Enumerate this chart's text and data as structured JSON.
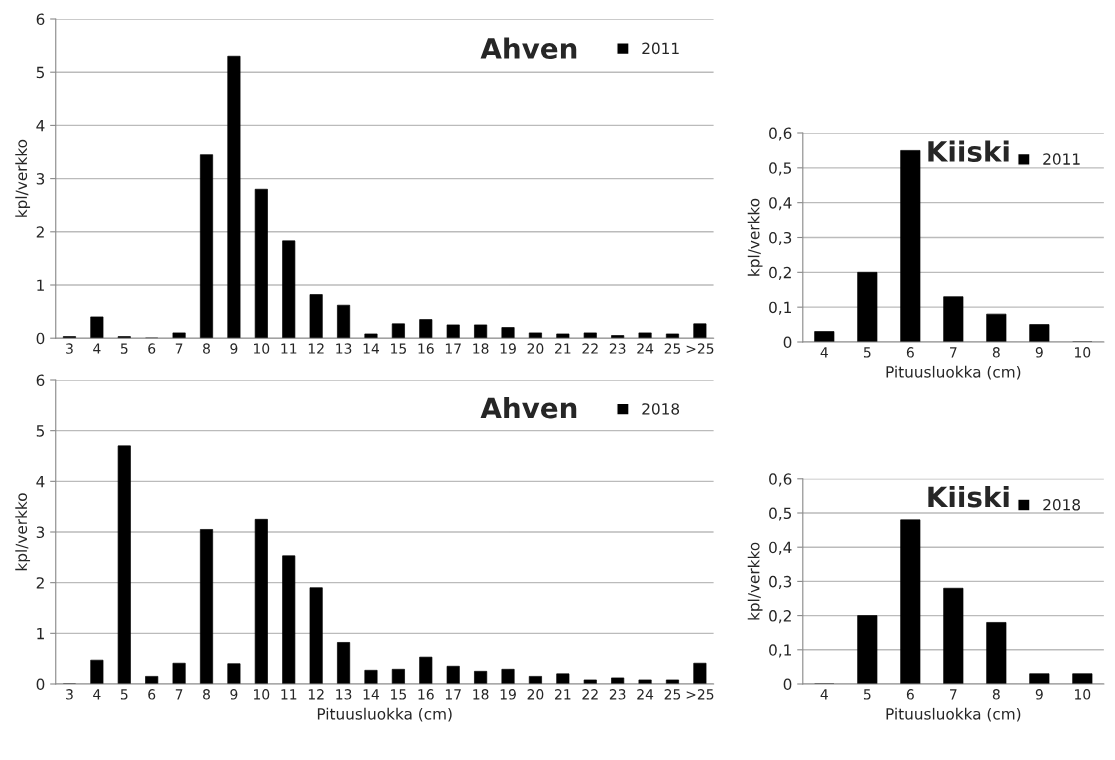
{
  "chart_data": [
    {
      "type": "bar",
      "title": "Ahven",
      "ylabel": "kpl/verkko",
      "categories": [
        "3",
        "4",
        "5",
        "6",
        "7",
        "8",
        "9",
        "10",
        "11",
        "12",
        "13",
        "14",
        "15",
        "16",
        "17",
        "18",
        "19",
        "20",
        "21",
        "22",
        "23",
        "24",
        "25",
        ">25"
      ],
      "series": [
        {
          "name": "2011",
          "color": "#000000",
          "values": [
            0.03,
            0.4,
            0.03,
            0,
            0.1,
            3.45,
            5.3,
            2.8,
            1.83,
            0.82,
            0.62,
            0.08,
            0.27,
            0.35,
            0.25,
            0.25,
            0.2,
            0.1,
            0.08,
            0.1,
            0.05,
            0.1,
            0.08,
            0.27
          ]
        }
      ],
      "ylim": [
        0,
        6
      ],
      "yticks": [
        0,
        1,
        2,
        3,
        4,
        5,
        6
      ],
      "grid": "y",
      "legend": "top right"
    },
    {
      "type": "bar",
      "title": "Kiiski",
      "ylabel": "kpl/verkko",
      "xlabel": "Pituusluokka (cm)",
      "categories": [
        "4",
        "5",
        "6",
        "7",
        "8",
        "9",
        "10"
      ],
      "series": [
        {
          "name": "2011",
          "color": "#000000",
          "values": [
            0.03,
            0.2,
            0.55,
            0.13,
            0.08,
            0.05,
            0
          ]
        }
      ],
      "ylim": [
        0,
        0.6
      ],
      "yticks": [
        0,
        {
          "value": 0.1,
          "label": "0,1"
        },
        {
          "value": 0.2,
          "label": "0,2"
        },
        {
          "value": 0.3,
          "label": "0,3"
        },
        {
          "value": 0.4,
          "label": "0,4"
        },
        {
          "value": 0.5,
          "label": "0,5"
        },
        {
          "value": 0.6,
          "label": "0,6"
        }
      ],
      "grid": "y",
      "legend": "top right"
    },
    {
      "type": "bar",
      "title": "Ahven",
      "ylabel": "kpl/verkko",
      "xlabel": "Pituusluokka (cm)",
      "categories": [
        "3",
        "4",
        "5",
        "6",
        "7",
        "8",
        "9",
        "10",
        "11",
        "12",
        "13",
        "14",
        "15",
        "16",
        "17",
        "18",
        "19",
        "20",
        "21",
        "22",
        "23",
        "24",
        "25",
        ">25"
      ],
      "series": [
        {
          "name": "2018",
          "color": "#000000",
          "values": [
            0,
            0.47,
            4.7,
            0.15,
            0.41,
            3.05,
            0.4,
            3.25,
            2.53,
            1.9,
            0.82,
            0.27,
            0.29,
            0.53,
            0.35,
            0.25,
            0.29,
            0.15,
            0.2,
            0.08,
            0.12,
            0.08,
            0.08,
            0.41
          ]
        }
      ],
      "ylim": [
        0,
        6
      ],
      "yticks": [
        0,
        1,
        2,
        3,
        4,
        5,
        6
      ],
      "grid": "y",
      "legend": "top right"
    },
    {
      "type": "bar",
      "title": "Kiiski",
      "ylabel": "kpl/verkko",
      "xlabel": "Pituusluokka (cm)",
      "categories": [
        "4",
        "5",
        "6",
        "7",
        "8",
        "9",
        "10"
      ],
      "series": [
        {
          "name": "2018",
          "color": "#000000",
          "values": [
            0,
            0.2,
            0.48,
            0.28,
            0.18,
            0.03,
            0.03
          ]
        }
      ],
      "ylim": [
        0,
        0.6
      ],
      "yticks": [
        0,
        {
          "value": 0.1,
          "label": "0,1"
        },
        {
          "value": 0.2,
          "label": "0,2"
        },
        {
          "value": 0.3,
          "label": "0,3"
        },
        {
          "value": 0.4,
          "label": "0,4"
        },
        {
          "value": 0.5,
          "label": "0,5"
        },
        {
          "value": 0.6,
          "label": "0,6"
        }
      ],
      "grid": "y",
      "legend": "top right"
    }
  ]
}
